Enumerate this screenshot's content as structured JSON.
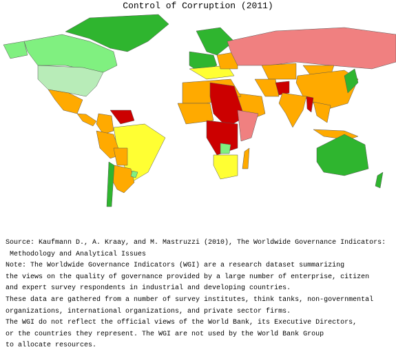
{
  "title": "Control of Corruption (2011)",
  "notes": [
    "Source: Kaufmann D., A. Kraay, and M. Mastruzzi (2010), The Worldwide Governance Indicators:",
    " Methodology and Analytical Issues",
    "Note: The Worldwide Governance Indicators (WGI) are a research dataset summarizing",
    "the views on the quality of governance provided by a large number of enterprise, citizen",
    "and expert survey respondents in industrial and developing countries.",
    "These data are gathered from a number of survey institutes, think tanks, non-governmental",
    "organizations, international organizations, and private sector firms.",
    "The WGI do not reflect the official views of the World Bank, its Executive Directors,",
    "or the countries they represent. The WGI are not used by the World Bank Group",
    "to allocate resources."
  ]
}
